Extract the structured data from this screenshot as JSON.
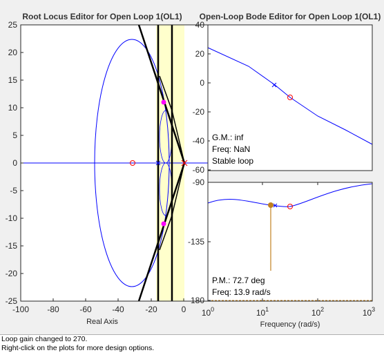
{
  "root_locus": {
    "title": "Root Locus Editor for Open Loop 1(OL1)",
    "xlabel": "Real Axis",
    "x_ticks": [
      "-100",
      "-80",
      "-60",
      "-40",
      "-20",
      "0"
    ],
    "y_ticks": [
      "25",
      "20",
      "15",
      "10",
      "5",
      "0",
      "-5",
      "-10",
      "-15",
      "-20",
      "-25"
    ],
    "xlim": [
      -100,
      0
    ],
    "ylim": [
      -25,
      25
    ],
    "locus_color": "#0000ff",
    "constraint_color": "#000000",
    "highlight_color": "#ffffcc",
    "closed_loop_pole_color": "#ff00ff"
  },
  "bode": {
    "title": "Open-Loop Bode Editor for Open Loop 1(OL1)",
    "xlabel": "Frequency (rad/s)",
    "mag_ticks": [
      "40",
      "20",
      "0",
      "-20",
      "-40",
      "-60"
    ],
    "phase_ticks": [
      "-90",
      "-135",
      "-180"
    ],
    "freq_tick_base": "10",
    "freq_tick_exps": [
      "0",
      "1",
      "2",
      "3"
    ],
    "gain_info": {
      "gm": "G.M.: inf",
      "freq": "Freq: NaN",
      "stability": "Stable loop"
    },
    "phase_info": {
      "pm": "P.M.: 72.7 deg",
      "freq": "Freq: 13.9 rad/s"
    },
    "margin_color": "#c08020"
  },
  "status": {
    "line1": "Loop gain changed to 270.",
    "line2": "Right-click on the plots for more design options."
  }
}
